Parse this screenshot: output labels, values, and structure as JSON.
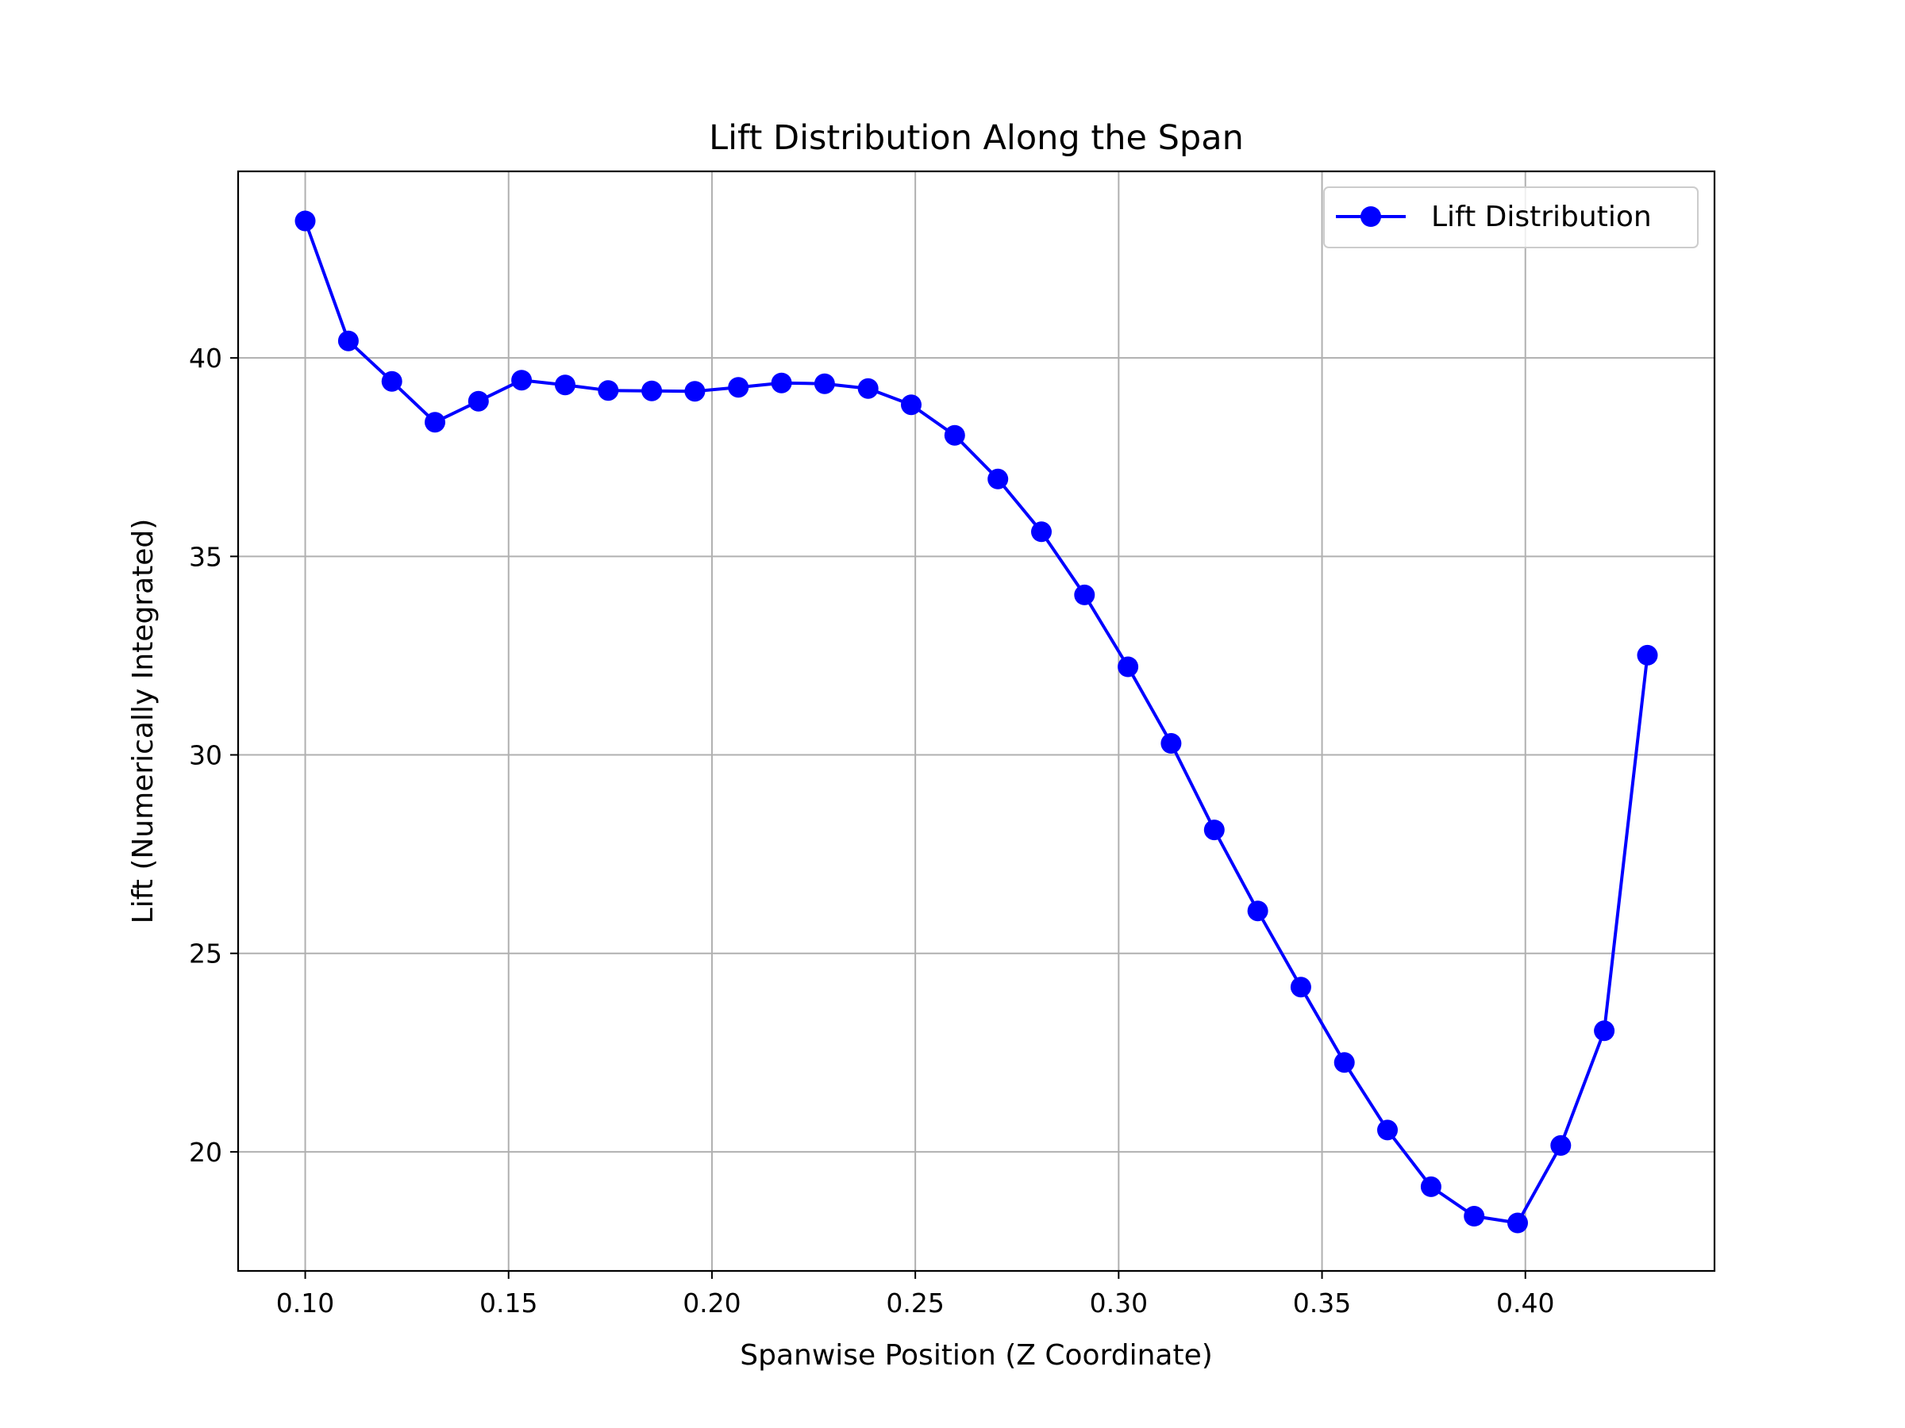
{
  "chart_data": {
    "type": "line",
    "title": "Lift Distribution Along the Span",
    "xlabel": "Spanwise Position (Z Coordinate)",
    "ylabel": "Lift (Numerically Integrated)",
    "xlim": [
      0.0835,
      0.4465
    ],
    "ylim": [
      17.0,
      44.7
    ],
    "xticks": [
      0.1,
      0.15,
      0.2,
      0.25,
      0.3,
      0.35,
      0.4
    ],
    "xtick_labels": [
      "0.10",
      "0.15",
      "0.20",
      "0.25",
      "0.30",
      "0.35",
      "0.40"
    ],
    "yticks": [
      20,
      25,
      30,
      35,
      40
    ],
    "ytick_labels": [
      "20",
      "25",
      "30",
      "35",
      "40"
    ],
    "grid": true,
    "legend_position": "top-right",
    "series": [
      {
        "name": "Lift Distribution",
        "color": "#0000ff",
        "marker": "circle",
        "x": [
          0.1,
          0.1106,
          0.1213,
          0.1319,
          0.1426,
          0.1532,
          0.1639,
          0.1745,
          0.1852,
          0.1958,
          0.2065,
          0.2171,
          0.2277,
          0.2384,
          0.249,
          0.2597,
          0.2703,
          0.281,
          0.2916,
          0.3023,
          0.3129,
          0.3235,
          0.3342,
          0.3448,
          0.3555,
          0.3661,
          0.3768,
          0.3874,
          0.3981,
          0.4087,
          0.4194,
          0.43
        ],
        "y": [
          43.45,
          40.43,
          39.41,
          38.38,
          38.91,
          39.44,
          39.32,
          39.18,
          39.17,
          39.16,
          39.26,
          39.37,
          39.35,
          39.23,
          38.82,
          38.05,
          36.95,
          35.62,
          34.03,
          32.22,
          30.29,
          28.11,
          26.07,
          24.15,
          22.25,
          20.55,
          19.12,
          18.38,
          18.21,
          20.16,
          23.05,
          32.51
        ]
      }
    ]
  }
}
